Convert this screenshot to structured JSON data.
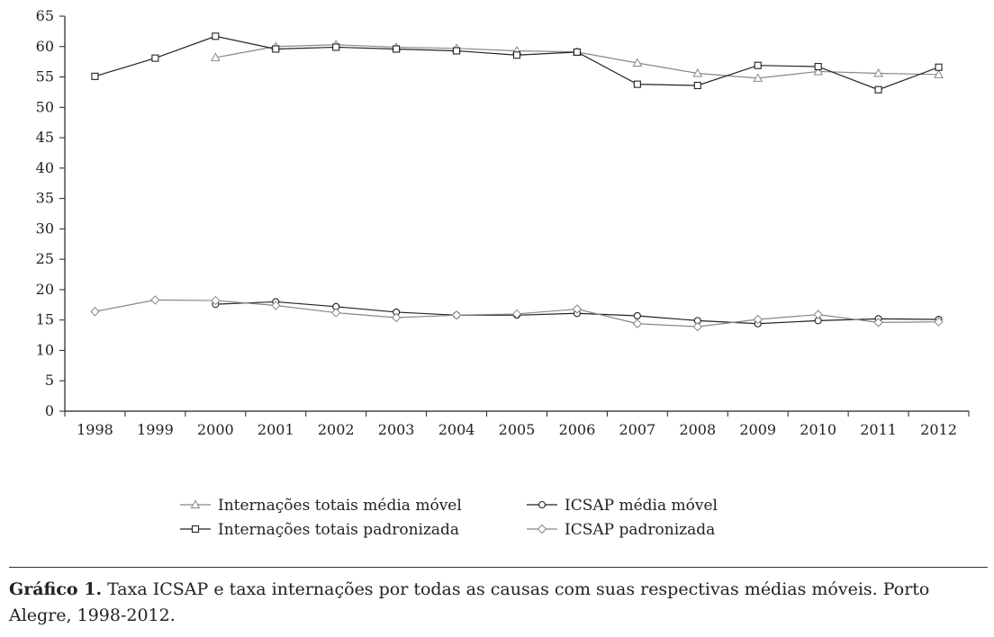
{
  "chart_data": {
    "type": "line",
    "title": "",
    "xlabel": "",
    "ylabel": "",
    "x": [
      "1998",
      "1999",
      "2000",
      "2001",
      "2002",
      "2003",
      "2004",
      "2005",
      "2006",
      "2007",
      "2008",
      "2009",
      "2010",
      "2011",
      "2012"
    ],
    "y_ticks": [
      "0",
      "5",
      "10",
      "15",
      "20",
      "25",
      "30",
      "35",
      "40",
      "45",
      "50",
      "55",
      "60",
      "65"
    ],
    "ylim": [
      0,
      65
    ],
    "grid": false,
    "legend_position": "bottom",
    "series": [
      {
        "name": "Internações totais média móvel",
        "marker": "triangle",
        "color": "#888888",
        "values": [
          null,
          null,
          58.2,
          60.0,
          60.3,
          59.9,
          59.7,
          59.3,
          59.1,
          57.3,
          55.6,
          54.8,
          55.9,
          55.6,
          55.4
        ]
      },
      {
        "name": "Internações totais padronizada",
        "marker": "square",
        "color": "#222222",
        "values": [
          55.1,
          58.1,
          61.7,
          59.6,
          59.9,
          59.6,
          59.3,
          58.6,
          59.1,
          53.8,
          53.6,
          56.9,
          56.7,
          52.9,
          56.6
        ]
      },
      {
        "name": "ICSAP média móvel",
        "marker": "circle",
        "color": "#222222",
        "values": [
          null,
          null,
          17.6,
          18.0,
          17.2,
          16.3,
          15.8,
          15.8,
          16.1,
          15.7,
          14.9,
          14.4,
          14.9,
          15.2,
          15.1
        ]
      },
      {
        "name": "ICSAP padronizada",
        "marker": "diamond",
        "color": "#888888",
        "values": [
          16.4,
          18.3,
          18.2,
          17.4,
          16.2,
          15.4,
          15.8,
          16.0,
          16.8,
          14.4,
          13.9,
          15.1,
          15.9,
          14.6,
          14.7
        ]
      }
    ]
  },
  "caption": {
    "label": "Gráfico 1.",
    "text": " Taxa ICSAP e taxa internações por todas as causas com suas respectivas médias móveis. Porto Alegre, 1998-2012."
  }
}
